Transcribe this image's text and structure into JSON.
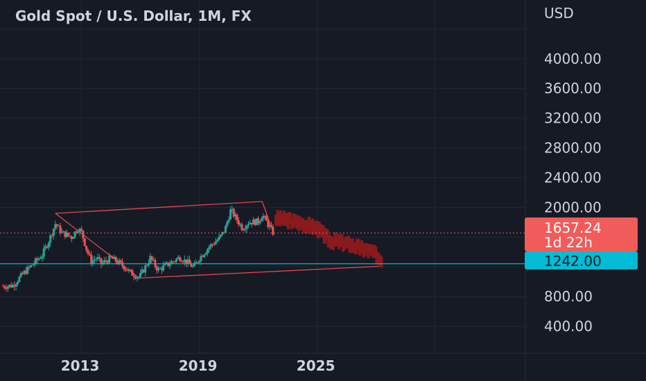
{
  "header": {
    "title": "Gold Spot / U.S. Dollar, 1M, FX"
  },
  "price_axis": {
    "currency": "USD"
  },
  "markers": {
    "last_price": "1657.24",
    "countdown": "1d 22h",
    "horizontal_line": "1242.00"
  },
  "colors": {
    "background": "#161a25",
    "grid": "#232735",
    "text": "#d1d4dc",
    "up": "#26a69a",
    "down": "#ef5350",
    "projection": "#8b1a1d",
    "hline": "#00bcd4",
    "price_tag": "#f15b59",
    "hline_tag": "#00bcd4",
    "channel": "#e04b4b"
  },
  "chart_data": {
    "type": "candlestick",
    "title": "Gold Spot / U.S. Dollar, 1M, FX",
    "y_unit": "USD",
    "y_ticks": [
      400,
      800,
      1242,
      1657.24,
      2000,
      2400,
      2800,
      3200,
      3600,
      4000
    ],
    "x_ticks": [
      "2013",
      "2019",
      "2025"
    ],
    "x_range": [
      2008.85,
      2035.6
    ],
    "y_range": [
      38,
      4790
    ],
    "grid": true,
    "legend": "none",
    "series": [
      {
        "name": "history",
        "interval": "1M",
        "approximate_closes": [
          {
            "t": "2009.0",
            "v": 940
          },
          {
            "t": "2009.5",
            "v": 950
          },
          {
            "t": "2010.0",
            "v": 1100
          },
          {
            "t": "2010.5",
            "v": 1230
          },
          {
            "t": "2011.0",
            "v": 1360
          },
          {
            "t": "2011.35",
            "v": 1560
          },
          {
            "t": "2011.67",
            "v": 1780
          },
          {
            "t": "2012.0",
            "v": 1660
          },
          {
            "t": "2012.5",
            "v": 1600
          },
          {
            "t": "2012.8",
            "v": 1720
          },
          {
            "t": "2013.0",
            "v": 1670
          },
          {
            "t": "2013.3",
            "v": 1400
          },
          {
            "t": "2013.5",
            "v": 1280
          },
          {
            "t": "2013.8",
            "v": 1320
          },
          {
            "t": "2014.0",
            "v": 1240
          },
          {
            "t": "2014.5",
            "v": 1320
          },
          {
            "t": "2015.0",
            "v": 1240
          },
          {
            "t": "2015.5",
            "v": 1120
          },
          {
            "t": "2015.95",
            "v": 1060
          },
          {
            "t": "2016.5",
            "v": 1320
          },
          {
            "t": "2016.9",
            "v": 1160
          },
          {
            "t": "2017.5",
            "v": 1250
          },
          {
            "t": "2018.0",
            "v": 1330
          },
          {
            "t": "2018.5",
            "v": 1240
          },
          {
            "t": "2018.7",
            "v": 1190
          },
          {
            "t": "2019.0",
            "v": 1320
          },
          {
            "t": "2019.5",
            "v": 1470
          },
          {
            "t": "2020.0",
            "v": 1580
          },
          {
            "t": "2020.3",
            "v": 1700
          },
          {
            "t": "2020.6",
            "v": 1970
          },
          {
            "t": "2020.8",
            "v": 1880
          },
          {
            "t": "2021.2",
            "v": 1720
          },
          {
            "t": "2021.5",
            "v": 1800
          },
          {
            "t": "2022.0",
            "v": 1810
          },
          {
            "t": "2022.2",
            "v": 1900
          },
          {
            "t": "2022.5",
            "v": 1770
          },
          {
            "t": "2022.8",
            "v": 1640
          }
        ]
      },
      {
        "name": "projection",
        "approximate_path": [
          {
            "t": "2022.9",
            "v": 1850
          },
          {
            "t": "2023.5",
            "v": 1830
          },
          {
            "t": "2024.3",
            "v": 1780
          },
          {
            "t": "2025.0",
            "v": 1720
          },
          {
            "t": "2025.6",
            "v": 1560
          },
          {
            "t": "2026.0",
            "v": 1540
          },
          {
            "t": "2026.7",
            "v": 1500
          },
          {
            "t": "2027.3",
            "v": 1440
          },
          {
            "t": "2027.8",
            "v": 1400
          },
          {
            "t": "2028.3",
            "v": 1290
          }
        ]
      }
    ],
    "trendlines": [
      {
        "name": "channel-top",
        "points": [
          {
            "t": "2011.67",
            "v": 1920
          },
          {
            "t": "2022.2",
            "v": 2080
          }
        ]
      },
      {
        "name": "channel-bottom",
        "points": [
          {
            "t": "2015.95",
            "v": 1050
          },
          {
            "t": "2028.3",
            "v": 1210
          }
        ]
      },
      {
        "name": "channel-left",
        "points": [
          {
            "t": "2011.67",
            "v": 1920
          },
          {
            "t": "2015.95",
            "v": 1050
          }
        ]
      },
      {
        "name": "channel-right",
        "points": [
          {
            "t": "2022.2",
            "v": 2080
          },
          {
            "t": "2022.8",
            "v": 1640
          }
        ]
      }
    ]
  }
}
